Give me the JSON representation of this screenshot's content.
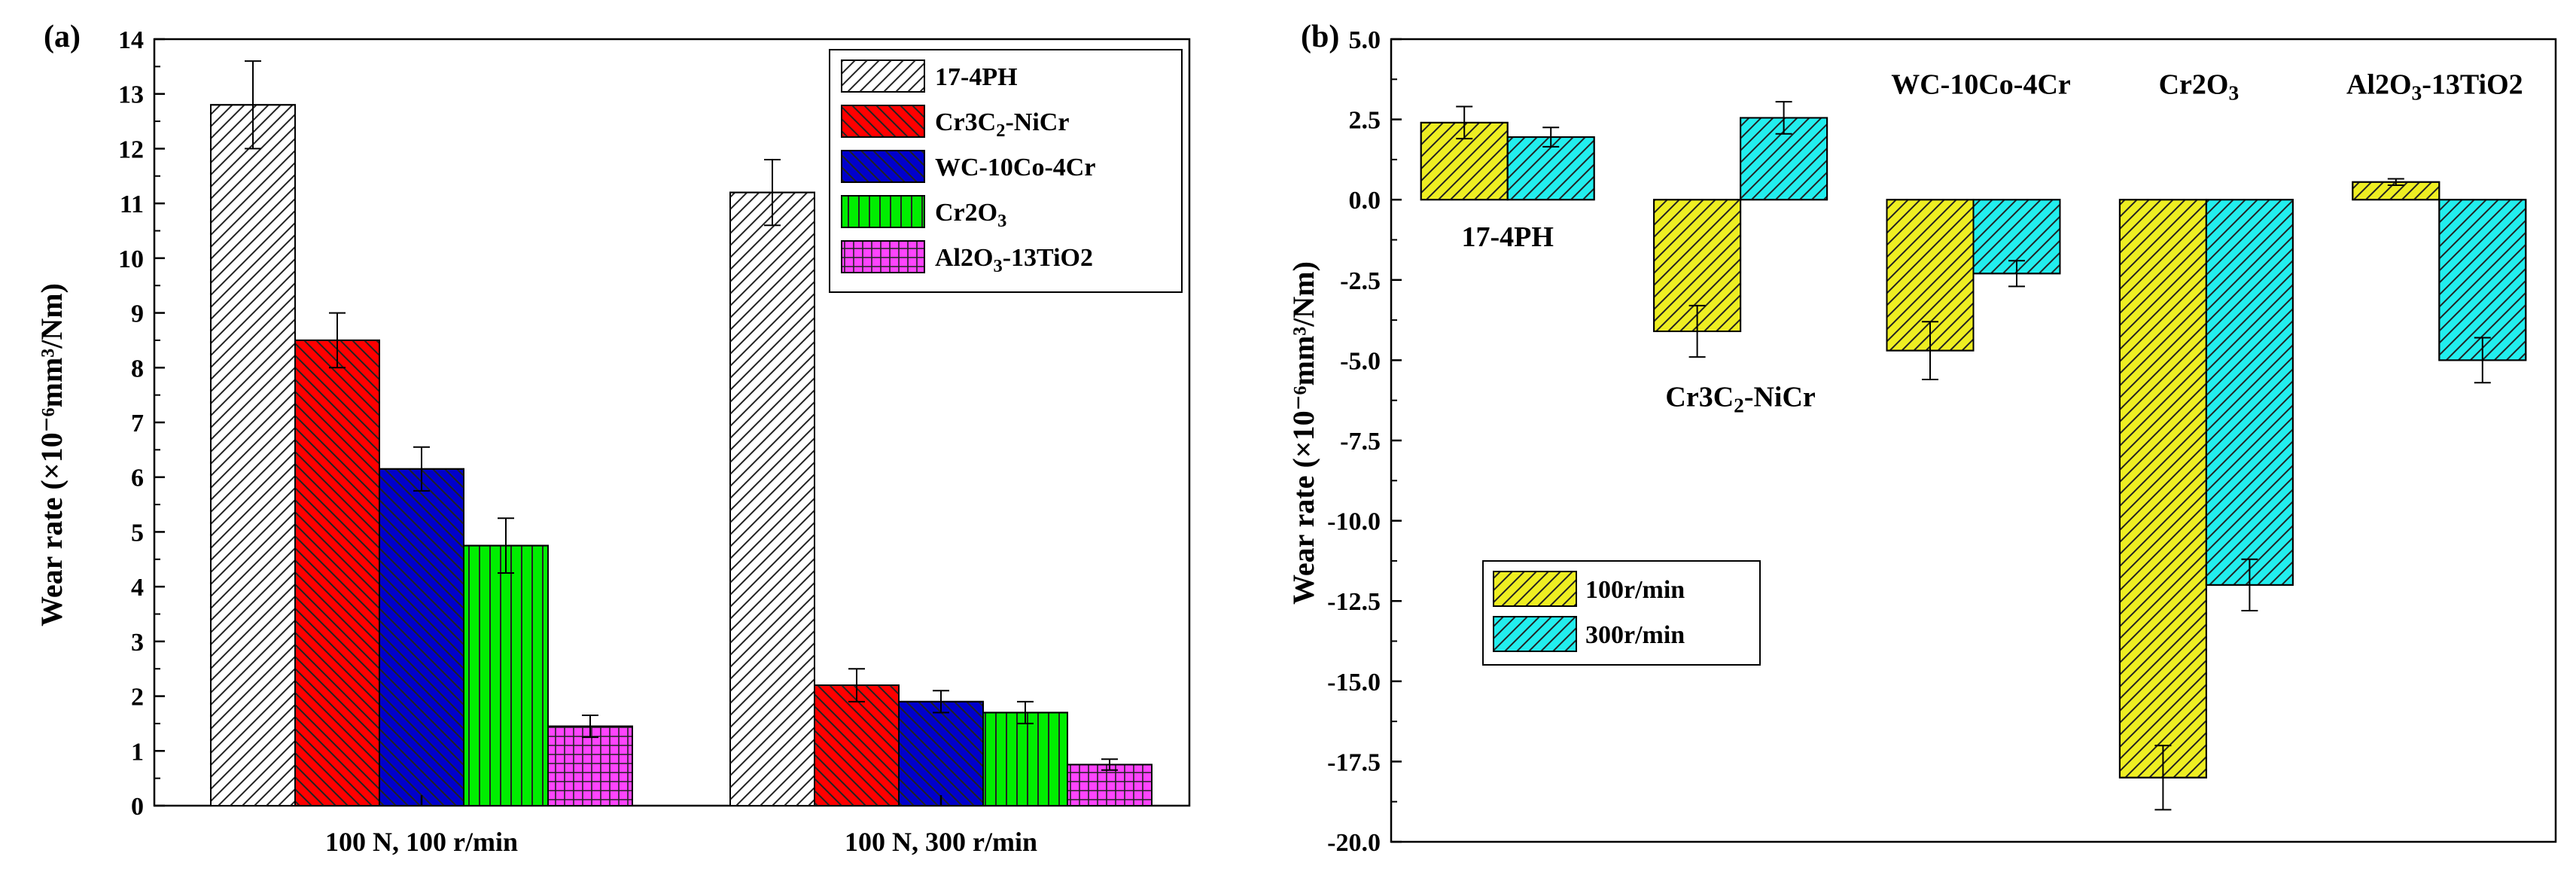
{
  "chart_data": [
    {
      "type": "bar",
      "panel_label": "(a)",
      "xlabel": "",
      "ylabel": "Wear rate (×10⁻⁶mm³/Nm)",
      "ylim": [
        0,
        14
      ],
      "yticks": [
        0,
        1,
        2,
        3,
        4,
        5,
        6,
        7,
        8,
        9,
        10,
        11,
        12,
        13,
        14
      ],
      "legend_position": "top-right",
      "categories": [
        "100 N, 100 r/min",
        "100 N, 300 r/min"
      ],
      "series": [
        {
          "name": "17-4PH",
          "values": [
            12.8,
            11.2
          ],
          "errors": [
            0.8,
            0.6
          ],
          "color": "#ffffff",
          "pattern": "diag-up"
        },
        {
          "name": "Cr3C2-NiCr",
          "values": [
            8.5,
            2.2
          ],
          "errors": [
            0.5,
            0.3
          ],
          "color": "#ff0000",
          "pattern": "diag-down"
        },
        {
          "name": "WC-10Co-4Cr",
          "values": [
            6.15,
            1.9
          ],
          "errors": [
            0.4,
            0.2
          ],
          "color": "#0000cc",
          "pattern": "diag-down"
        },
        {
          "name": "Cr2O3",
          "values": [
            4.75,
            1.7
          ],
          "errors": [
            0.5,
            0.2
          ],
          "color": "#00ee00",
          "pattern": "vertical"
        },
        {
          "name": "Al2O3-13TiO2",
          "values": [
            1.45,
            0.75
          ],
          "errors": [
            0.2,
            0.1
          ],
          "color": "#ff44ff",
          "pattern": "grid"
        }
      ]
    },
    {
      "type": "bar",
      "panel_label": "(b)",
      "xlabel": "",
      "ylabel": "Wear rate (×10⁻⁶mm³/Nm)",
      "ylim": [
        -20,
        5
      ],
      "yticks": [
        "-20.0",
        "-17.5",
        "-15.0",
        "-12.5",
        "-10.0",
        "-7.5",
        "-5.0",
        "-2.5",
        "0.0",
        "2.5",
        "5.0"
      ],
      "legend_position": "bottom-left",
      "categories": [
        "17-4PH",
        "Cr3C2-NiCr",
        "WC-10Co-4Cr",
        "Cr2O3",
        "Al2O3-13TiO2"
      ],
      "series": [
        {
          "name": "100r/min",
          "values": [
            2.4,
            -4.1,
            -4.7,
            -18.0,
            0.55
          ],
          "errors": [
            0.5,
            0.8,
            0.9,
            1.0,
            0.1
          ],
          "color": "#eeee22",
          "pattern": "diag-up"
        },
        {
          "name": "300r/min",
          "values": [
            1.95,
            2.55,
            -2.3,
            -12.0,
            -5.0
          ],
          "errors": [
            0.3,
            0.5,
            0.4,
            0.8,
            0.7
          ],
          "color": "#22eeee",
          "pattern": "diag-up"
        }
      ]
    }
  ]
}
